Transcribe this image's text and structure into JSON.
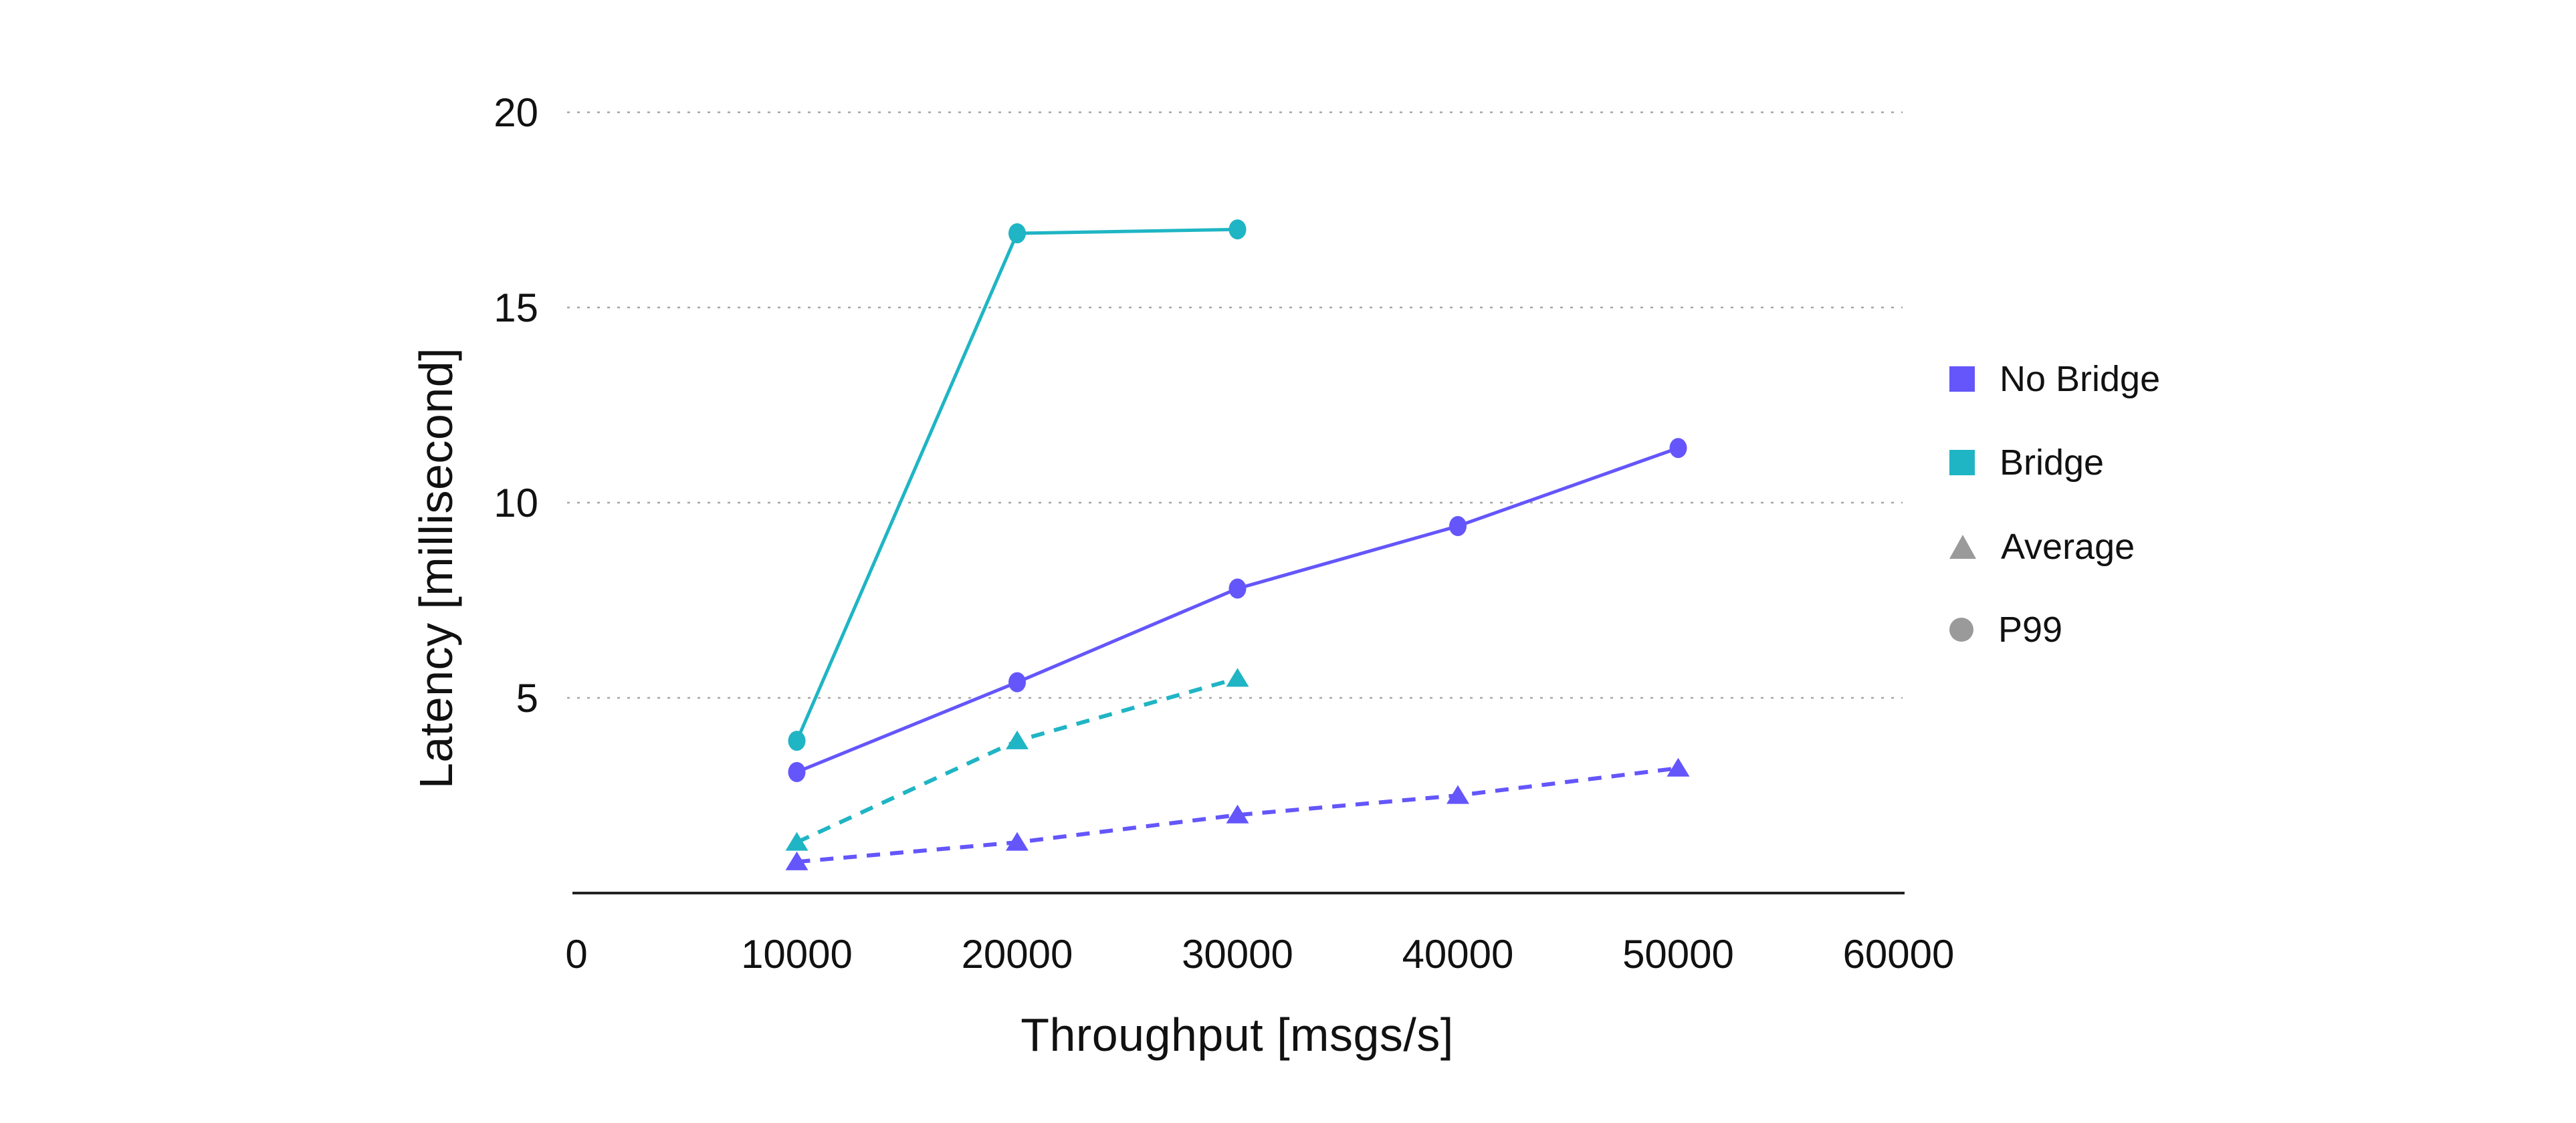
{
  "figure": {
    "background": "#ffffff",
    "text_color": "#111111",
    "gridline_color": "#a6a6a6",
    "axisline_color": "#222222"
  },
  "chart_data": {
    "type": "line",
    "title": "",
    "xlabel": "Throughput [msgs/s]",
    "ylabel": "Latency [millisecond]",
    "xlim": [
      0,
      60000
    ],
    "ylim": [
      0,
      20
    ],
    "x_ticks": [
      0,
      10000,
      20000,
      30000,
      40000,
      50000,
      60000
    ],
    "y_ticks": [
      5,
      10,
      15,
      20
    ],
    "grid": "horizontal-dotted",
    "legend_position": "right",
    "series": [
      {
        "name": "No Bridge P99",
        "group": "No Bridge",
        "stat": "P99",
        "color": "#6456fb",
        "line_style": "solid",
        "marker": "circle",
        "x": [
          10000,
          20000,
          30000,
          40000,
          50000
        ],
        "y": [
          3.1,
          5.4,
          7.8,
          9.4,
          11.4
        ]
      },
      {
        "name": "Bridge P99",
        "group": "Bridge",
        "stat": "P99",
        "color": "#1fb5c4",
        "line_style": "solid",
        "marker": "circle",
        "x": [
          10000,
          20000,
          30000
        ],
        "y": [
          3.9,
          16.9,
          17.0
        ]
      },
      {
        "name": "No Bridge Average",
        "group": "No Bridge",
        "stat": "Average",
        "color": "#6456fb",
        "line_style": "dashed",
        "marker": "triangle",
        "x": [
          10000,
          20000,
          30000,
          40000,
          50000
        ],
        "y": [
          0.8,
          1.3,
          2.0,
          2.5,
          3.2
        ]
      },
      {
        "name": "Bridge Average",
        "group": "Bridge",
        "stat": "Average",
        "color": "#1fb5c4",
        "line_style": "dashed",
        "marker": "triangle",
        "x": [
          10000,
          20000,
          30000
        ],
        "y": [
          1.3,
          3.9,
          5.5
        ]
      }
    ],
    "legend": [
      {
        "label": "No Bridge",
        "marker": "square",
        "color": "#6456fb"
      },
      {
        "label": "Bridge",
        "marker": "square",
        "color": "#1fb5c4"
      },
      {
        "label": "Average",
        "marker": "triangle",
        "color": "#9a9a9a"
      },
      {
        "label": "P99",
        "marker": "circle",
        "color": "#9a9a9a"
      }
    ]
  }
}
